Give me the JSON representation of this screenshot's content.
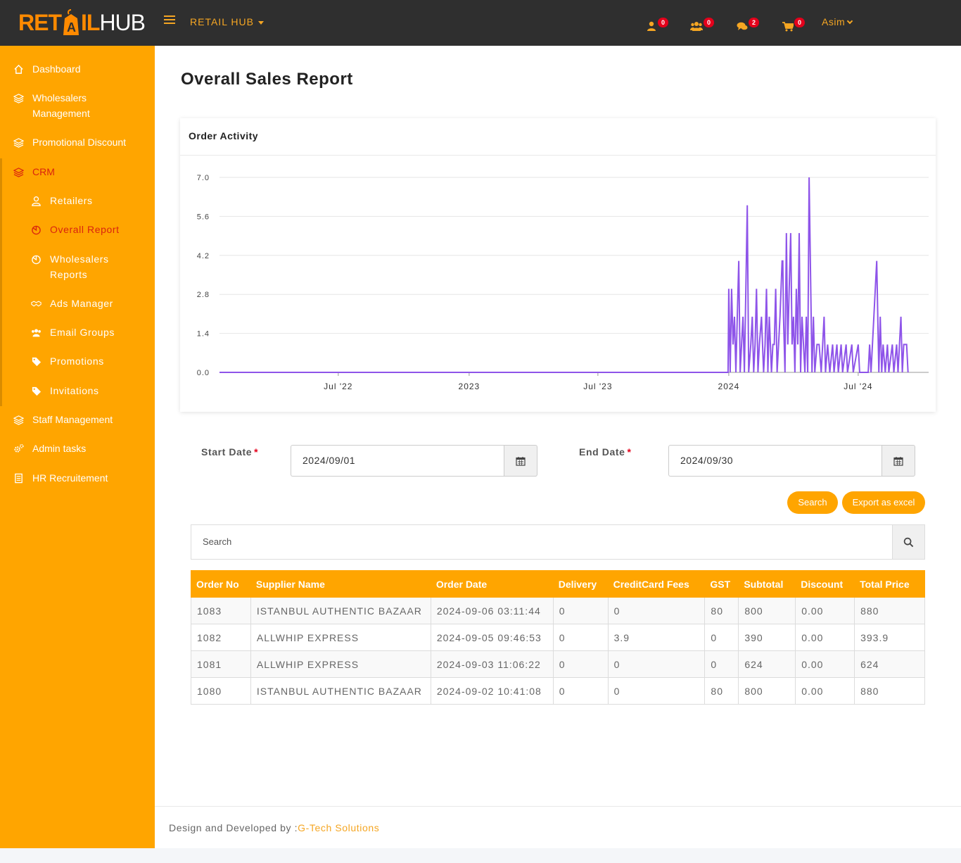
{
  "header": {
    "logo_part1": "RET",
    "logo_part2": "IL",
    "logo_part3": "HUB",
    "brand_menu": "RETAIL HUB",
    "notifications": [
      {
        "icon": "user-icon",
        "count": "0"
      },
      {
        "icon": "users-icon",
        "count": "0"
      },
      {
        "icon": "comments-icon",
        "count": "2"
      },
      {
        "icon": "cart-icon",
        "count": "0"
      }
    ],
    "user_name": "Asim"
  },
  "sidebar": {
    "items": [
      {
        "label": "Dashboard",
        "icon": "home-icon"
      },
      {
        "label": "Wholesalers Management",
        "icon": "layers-icon"
      },
      {
        "label": "Promotional Discount",
        "icon": "layers-icon"
      },
      {
        "label": "CRM",
        "icon": "layers-icon"
      },
      {
        "label": "Retailers",
        "icon": "user-icon"
      },
      {
        "label": "Overall Report",
        "icon": "pie-chart-icon"
      },
      {
        "label": "Wholesalers Reports",
        "icon": "pie-chart-icon"
      },
      {
        "label": "Ads Manager",
        "icon": "handshake-icon"
      },
      {
        "label": "Email Groups",
        "icon": "users-icon"
      },
      {
        "label": "Promotions",
        "icon": "tag-icon"
      },
      {
        "label": "Invitations",
        "icon": "tag-icon"
      },
      {
        "label": "Staff Management",
        "icon": "layers-icon"
      },
      {
        "label": "Admin tasks",
        "icon": "cogs-icon"
      },
      {
        "label": "HR Recruitement",
        "icon": "file-icon"
      }
    ],
    "active": "Overall Report",
    "accent": "#ffa500",
    "active_color": "#d9230f"
  },
  "page": {
    "title": "Overall Sales Report",
    "card_title": "Order Activity"
  },
  "chart_data": {
    "type": "line",
    "title": "Order Activity",
    "xlabel": "",
    "ylabel": "",
    "y_ticks": [
      "0.0",
      "1.4",
      "2.8",
      "4.2",
      "5.6",
      "7.0"
    ],
    "ylim": [
      0,
      7
    ],
    "x_tick_labels": [
      "Jul '22",
      "2023",
      "Jul '23",
      "2024",
      "Jul '24"
    ],
    "x_range": [
      "2022-01-15",
      "2024-10-08"
    ],
    "grid": true,
    "color": "#8e54e9",
    "series": [
      {
        "name": "",
        "points": [
          [
            "2022-01-15",
            0
          ],
          [
            "2023-12-31",
            0
          ],
          [
            "2024-01-01",
            3
          ],
          [
            "2024-01-03",
            0
          ],
          [
            "2024-01-05",
            3
          ],
          [
            "2024-01-07",
            1
          ],
          [
            "2024-01-09",
            2
          ],
          [
            "2024-01-11",
            0
          ],
          [
            "2024-01-13",
            2
          ],
          [
            "2024-01-15",
            4
          ],
          [
            "2024-01-17",
            0
          ],
          [
            "2024-01-19",
            1
          ],
          [
            "2024-01-21",
            2
          ],
          [
            "2024-01-23",
            0
          ],
          [
            "2024-01-25",
            3
          ],
          [
            "2024-01-27",
            6
          ],
          [
            "2024-01-29",
            0
          ],
          [
            "2024-02-01",
            1
          ],
          [
            "2024-02-03",
            2
          ],
          [
            "2024-02-05",
            0
          ],
          [
            "2024-02-07",
            1
          ],
          [
            "2024-02-09",
            3
          ],
          [
            "2024-02-11",
            0
          ],
          [
            "2024-02-13",
            1
          ],
          [
            "2024-02-16",
            2
          ],
          [
            "2024-02-19",
            0
          ],
          [
            "2024-02-21",
            1
          ],
          [
            "2024-02-23",
            3
          ],
          [
            "2024-02-25",
            0
          ],
          [
            "2024-02-27",
            2
          ],
          [
            "2024-03-01",
            0
          ],
          [
            "2024-03-03",
            1
          ],
          [
            "2024-03-05",
            1
          ],
          [
            "2024-03-07",
            3
          ],
          [
            "2024-03-09",
            0
          ],
          [
            "2024-03-11",
            1
          ],
          [
            "2024-03-13",
            2
          ],
          [
            "2024-03-16",
            4
          ],
          [
            "2024-03-17",
            4
          ],
          [
            "2024-03-18",
            2
          ],
          [
            "2024-03-20",
            0
          ],
          [
            "2024-03-22",
            5
          ],
          [
            "2024-03-24",
            1
          ],
          [
            "2024-03-26",
            3
          ],
          [
            "2024-03-28",
            5
          ],
          [
            "2024-03-30",
            1
          ],
          [
            "2024-04-01",
            2
          ],
          [
            "2024-04-03",
            0
          ],
          [
            "2024-04-05",
            3
          ],
          [
            "2024-04-07",
            1
          ],
          [
            "2024-04-09",
            5
          ],
          [
            "2024-04-11",
            0
          ],
          [
            "2024-04-13",
            2
          ],
          [
            "2024-04-15",
            1
          ],
          [
            "2024-04-17",
            0
          ],
          [
            "2024-04-19",
            2
          ],
          [
            "2024-04-21",
            0
          ],
          [
            "2024-04-23",
            7
          ],
          [
            "2024-04-27",
            0
          ],
          [
            "2024-04-29",
            2
          ],
          [
            "2024-05-01",
            0
          ],
          [
            "2024-05-04",
            1
          ],
          [
            "2024-05-07",
            1
          ],
          [
            "2024-05-10",
            0
          ],
          [
            "2024-05-14",
            2
          ],
          [
            "2024-05-16",
            0
          ],
          [
            "2024-05-19",
            1
          ],
          [
            "2024-05-22",
            0
          ],
          [
            "2024-05-26",
            1
          ],
          [
            "2024-05-28",
            0
          ],
          [
            "2024-06-01",
            1
          ],
          [
            "2024-06-03",
            0
          ],
          [
            "2024-06-07",
            1
          ],
          [
            "2024-06-09",
            0
          ],
          [
            "2024-06-14",
            1
          ],
          [
            "2024-06-16",
            0
          ],
          [
            "2024-06-22",
            1
          ],
          [
            "2024-06-24",
            0
          ],
          [
            "2024-07-01",
            1
          ],
          [
            "2024-07-03",
            0
          ],
          [
            "2024-07-15",
            0
          ],
          [
            "2024-07-17",
            1
          ],
          [
            "2024-07-19",
            0
          ],
          [
            "2024-07-27",
            4
          ],
          [
            "2024-07-30",
            0
          ],
          [
            "2024-08-01",
            2
          ],
          [
            "2024-08-03",
            0
          ],
          [
            "2024-08-05",
            1
          ],
          [
            "2024-08-08",
            0
          ],
          [
            "2024-08-11",
            1
          ],
          [
            "2024-08-13",
            0
          ],
          [
            "2024-08-18",
            1
          ],
          [
            "2024-08-20",
            0
          ],
          [
            "2024-08-24",
            1
          ],
          [
            "2024-08-26",
            0
          ],
          [
            "2024-08-30",
            2
          ],
          [
            "2024-09-01",
            0
          ],
          [
            "2024-09-03",
            1
          ],
          [
            "2024-09-07",
            1
          ],
          [
            "2024-09-09",
            0
          ]
        ]
      }
    ]
  },
  "filters": {
    "start_label": "Start Date",
    "start_value": "2024/09/01",
    "end_label": "End Date",
    "end_value": "2024/09/30",
    "required_mark": "*",
    "search_button": "Search",
    "export_button": "Export as excel"
  },
  "table": {
    "search_placeholder": "Search",
    "columns": [
      "Order No",
      "Supplier Name",
      "Order Date",
      "Delivery",
      "CreditCard Fees",
      "GST",
      "Subtotal",
      "Discount",
      "Total Price"
    ],
    "rows": [
      [
        "1083",
        "ISTANBUL AUTHENTIC BAZAAR",
        "2024-09-06 03:11:44",
        "0",
        "0",
        "80",
        "800",
        "0.00",
        "880"
      ],
      [
        "1082",
        "ALLWHIP EXPRESS",
        "2024-09-05 09:46:53",
        "0",
        "3.9",
        "0",
        "390",
        "0.00",
        "393.9"
      ],
      [
        "1081",
        "ALLWHIP EXPRESS",
        "2024-09-03 11:06:22",
        "0",
        "0",
        "0",
        "624",
        "0.00",
        "624"
      ],
      [
        "1080",
        "ISTANBUL AUTHENTIC BAZAAR",
        "2024-09-02 10:41:08",
        "0",
        "0",
        "80",
        "800",
        "0.00",
        "880"
      ]
    ]
  },
  "footer": {
    "text": "Design and Developed by :",
    "link": "G-Tech Solutions"
  }
}
